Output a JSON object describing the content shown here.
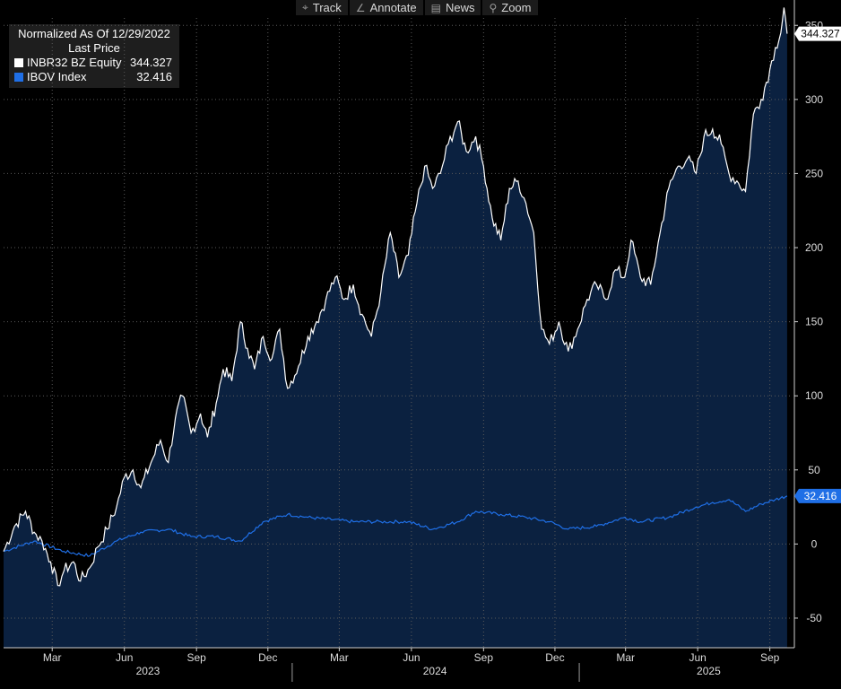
{
  "toolbar": {
    "items": [
      {
        "label": "Track",
        "icon": "crosshair-icon",
        "glyph": "⌖"
      },
      {
        "label": "Annotate",
        "icon": "pencil-icon",
        "glyph": "∠"
      },
      {
        "label": "News",
        "icon": "newspaper-icon",
        "glyph": "▤"
      },
      {
        "label": "Zoom",
        "icon": "magnifier-icon",
        "glyph": "⚲"
      }
    ]
  },
  "legend": {
    "title": "Normalized As Of 12/29/2022",
    "subtitle": "Last Price",
    "entries": [
      {
        "name": "INBR32 BZ Equity",
        "value": "344.327",
        "color": "#ffffff"
      },
      {
        "name": "IBOV Index",
        "value": "32.416",
        "color": "#1f6fe6"
      }
    ]
  },
  "chart_data": {
    "type": "area",
    "xlabel": "",
    "ylabel": "",
    "x_range": [
      "2022-12-29",
      "2025-09-30"
    ],
    "ylim": [
      -70,
      355
    ],
    "y_ticks": [
      -50,
      0,
      50,
      100,
      150,
      200,
      250,
      300,
      350
    ],
    "x_ticks": [
      {
        "label": "Mar",
        "date": "2023-03-01"
      },
      {
        "label": "Jun",
        "date": "2023-06-01"
      },
      {
        "label": "Sep",
        "date": "2023-09-01"
      },
      {
        "label": "Dec",
        "date": "2023-12-01"
      },
      {
        "label": "Mar",
        "date": "2024-03-01"
      },
      {
        "label": "Jun",
        "date": "2024-06-01"
      },
      {
        "label": "Sep",
        "date": "2024-09-01"
      },
      {
        "label": "Dec",
        "date": "2024-12-01"
      },
      {
        "label": "Mar",
        "date": "2025-03-01"
      },
      {
        "label": "Jun",
        "date": "2025-06-01"
      },
      {
        "label": "Sep",
        "date": "2025-09-01"
      }
    ],
    "year_labels": [
      {
        "label": "2023",
        "date": "2023-07-01"
      },
      {
        "label": "2024",
        "date": "2024-07-01"
      },
      {
        "label": "2025",
        "date": "2025-06-15"
      }
    ],
    "year_separators": [
      "2024-01-01",
      "2025-01-01"
    ],
    "grid": true,
    "series": [
      {
        "name": "INBR32 BZ Equity",
        "color": "#ffffff",
        "fill": "#0b2140",
        "last_value": "344.327",
        "points": [
          [
            "2022-12-29",
            -5
          ],
          [
            "2023-01-12",
            12
          ],
          [
            "2023-01-26",
            22
          ],
          [
            "2023-02-06",
            8
          ],
          [
            "2023-02-16",
            2
          ],
          [
            "2023-02-27",
            -12
          ],
          [
            "2023-03-08",
            -28
          ],
          [
            "2023-03-16",
            -18
          ],
          [
            "2023-03-28",
            -12
          ],
          [
            "2023-04-06",
            -25
          ],
          [
            "2023-04-18",
            -16
          ],
          [
            "2023-04-28",
            -2
          ],
          [
            "2023-05-10",
            10
          ],
          [
            "2023-05-22",
            25
          ],
          [
            "2023-06-01",
            45
          ],
          [
            "2023-06-12",
            50
          ],
          [
            "2023-06-22",
            38
          ],
          [
            "2023-07-05",
            55
          ],
          [
            "2023-07-17",
            70
          ],
          [
            "2023-07-27",
            55
          ],
          [
            "2023-08-05",
            85
          ],
          [
            "2023-08-14",
            100
          ],
          [
            "2023-08-25",
            75
          ],
          [
            "2023-09-06",
            88
          ],
          [
            "2023-09-15",
            72
          ],
          [
            "2023-09-26",
            95
          ],
          [
            "2023-10-05",
            118
          ],
          [
            "2023-10-16",
            110
          ],
          [
            "2023-10-27",
            150
          ],
          [
            "2023-11-05",
            132
          ],
          [
            "2023-11-14",
            118
          ],
          [
            "2023-11-25",
            140
          ],
          [
            "2023-12-06",
            125
          ],
          [
            "2023-12-16",
            145
          ],
          [
            "2023-12-26",
            105
          ],
          [
            "2024-01-09",
            120
          ],
          [
            "2024-01-21",
            140
          ],
          [
            "2024-02-01",
            150
          ],
          [
            "2024-02-13",
            165
          ],
          [
            "2024-02-25",
            180
          ],
          [
            "2024-03-07",
            165
          ],
          [
            "2024-03-19",
            175
          ],
          [
            "2024-03-30",
            155
          ],
          [
            "2024-04-11",
            140
          ],
          [
            "2024-04-23",
            170
          ],
          [
            "2024-05-05",
            210
          ],
          [
            "2024-05-16",
            180
          ],
          [
            "2024-05-28",
            195
          ],
          [
            "2024-06-08",
            230
          ],
          [
            "2024-06-18",
            255
          ],
          [
            "2024-06-28",
            240
          ],
          [
            "2024-07-08",
            250
          ],
          [
            "2024-07-18",
            270
          ],
          [
            "2024-07-30",
            285
          ],
          [
            "2024-08-10",
            265
          ],
          [
            "2024-08-22",
            275
          ],
          [
            "2024-09-01",
            255
          ],
          [
            "2024-09-12",
            220
          ],
          [
            "2024-09-23",
            205
          ],
          [
            "2024-10-04",
            240
          ],
          [
            "2024-10-15",
            245
          ],
          [
            "2024-10-25",
            230
          ],
          [
            "2024-11-04",
            210
          ],
          [
            "2024-11-14",
            145
          ],
          [
            "2024-11-24",
            135
          ],
          [
            "2024-12-06",
            150
          ],
          [
            "2024-12-18",
            130
          ],
          [
            "2024-12-30",
            145
          ],
          [
            "2025-01-11",
            165
          ],
          [
            "2025-01-23",
            175
          ],
          [
            "2025-02-04",
            165
          ],
          [
            "2025-02-16",
            185
          ],
          [
            "2025-02-28",
            180
          ],
          [
            "2025-03-08",
            205
          ],
          [
            "2025-03-20",
            180
          ],
          [
            "2025-04-02",
            175
          ],
          [
            "2025-04-14",
            210
          ],
          [
            "2025-04-25",
            240
          ],
          [
            "2025-05-07",
            255
          ],
          [
            "2025-05-19",
            260
          ],
          [
            "2025-05-30",
            250
          ],
          [
            "2025-06-09",
            275
          ],
          [
            "2025-06-20",
            280
          ],
          [
            "2025-07-01",
            270
          ],
          [
            "2025-07-11",
            250
          ],
          [
            "2025-07-21",
            245
          ],
          [
            "2025-08-01",
            238
          ],
          [
            "2025-08-11",
            290
          ],
          [
            "2025-08-21",
            300
          ],
          [
            "2025-09-01",
            320
          ],
          [
            "2025-09-08",
            335
          ],
          [
            "2025-09-15",
            345
          ],
          [
            "2025-09-19",
            362
          ],
          [
            "2025-09-23",
            344.327
          ]
        ]
      },
      {
        "name": "IBOV Index",
        "color": "#1f6fe6",
        "last_value": "32.416",
        "points": [
          [
            "2022-12-29",
            -5
          ],
          [
            "2023-02-06",
            2
          ],
          [
            "2023-03-16",
            -5
          ],
          [
            "2023-04-18",
            -8
          ],
          [
            "2023-05-22",
            2
          ],
          [
            "2023-06-22",
            8
          ],
          [
            "2023-07-27",
            10
          ],
          [
            "2023-08-25",
            5
          ],
          [
            "2023-09-26",
            5
          ],
          [
            "2023-10-27",
            2
          ],
          [
            "2023-11-25",
            15
          ],
          [
            "2023-12-26",
            20
          ],
          [
            "2024-01-21",
            18
          ],
          [
            "2024-03-19",
            15
          ],
          [
            "2024-04-23",
            15
          ],
          [
            "2024-05-28",
            15
          ],
          [
            "2024-06-28",
            10
          ],
          [
            "2024-07-30",
            15
          ],
          [
            "2024-08-22",
            22
          ],
          [
            "2024-09-23",
            20
          ],
          [
            "2024-10-25",
            18
          ],
          [
            "2024-11-24",
            15
          ],
          [
            "2024-12-18",
            10
          ],
          [
            "2025-01-23",
            12
          ],
          [
            "2025-02-28",
            18
          ],
          [
            "2025-03-20",
            15
          ],
          [
            "2025-04-25",
            18
          ],
          [
            "2025-05-30",
            25
          ],
          [
            "2025-06-20",
            28
          ],
          [
            "2025-07-11",
            30
          ],
          [
            "2025-08-01",
            22
          ],
          [
            "2025-08-21",
            27
          ],
          [
            "2025-09-08",
            30
          ],
          [
            "2025-09-23",
            32.416
          ]
        ]
      }
    ]
  }
}
